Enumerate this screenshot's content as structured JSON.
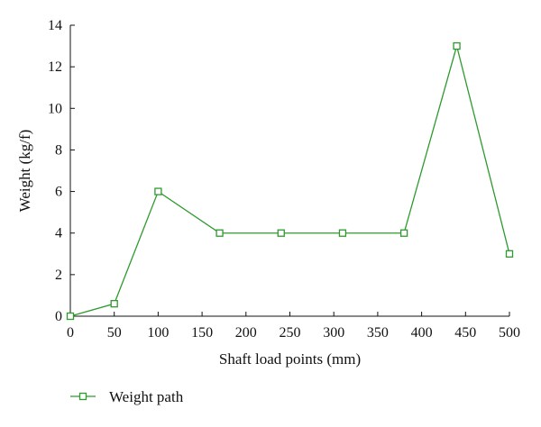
{
  "chart_data": {
    "type": "line",
    "title": "",
    "xlabel": "Shaft load points (mm)",
    "ylabel": "Weight (kg/f)",
    "xlim": [
      0,
      500
    ],
    "ylim": [
      0,
      14
    ],
    "xticks": [
      0,
      50,
      100,
      150,
      200,
      250,
      300,
      350,
      400,
      450,
      500
    ],
    "yticks": [
      0,
      2,
      4,
      6,
      8,
      10,
      12,
      14
    ],
    "grid": false,
    "legend_position": "bottom-left",
    "series": [
      {
        "name": "Weight path",
        "color": "#2e9a2e",
        "marker": "square",
        "x": [
          0,
          50,
          100,
          170,
          240,
          310,
          380,
          440,
          500
        ],
        "y": [
          0,
          0.6,
          6,
          4,
          4,
          4,
          4,
          13,
          3
        ]
      }
    ]
  }
}
